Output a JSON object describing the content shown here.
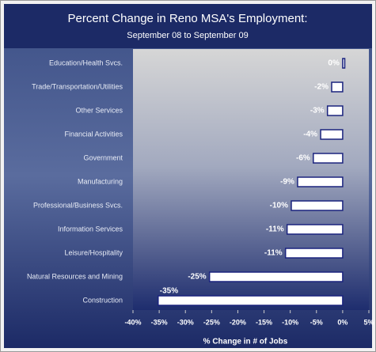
{
  "chart_data": {
    "type": "barh",
    "title": "Percent Change in  Reno MSA's Employment:",
    "subtitle": "September 08 to September 09",
    "x_label": "% Change in # of Jobs",
    "categories": [
      "Education/Health Svcs.",
      "Trade/Transportation/Utilities",
      "Other Services",
      "Financial Activities",
      "Government",
      "Manufacturing",
      "Professional/Business Svcs.",
      "Information Services",
      "Leisure/Hospitality",
      "Natural Resources and Mining",
      "Construction"
    ],
    "values": [
      0.4,
      -2.1,
      -2.9,
      -4.2,
      -5.6,
      -8.6,
      -9.8,
      -10.6,
      -10.9,
      -25.4,
      -35.2
    ],
    "value_labels": [
      "0%",
      "-2%",
      "-3%",
      "-4%",
      "-6%",
      "-9%",
      "-10%",
      "-11%",
      "-11%",
      "-25%",
      "-35%"
    ],
    "color": "#ffffff",
    "edge_color": "#1a237e",
    "xlim": [
      -40,
      5
    ],
    "xticks": [
      {
        "value": -40,
        "label": "-40%"
      },
      {
        "value": -35,
        "label": "-35%"
      },
      {
        "value": -30,
        "label": "-30%"
      },
      {
        "value": -25,
        "label": "-25%"
      },
      {
        "value": -20,
        "label": "-20%"
      },
      {
        "value": -15,
        "label": "-15%"
      },
      {
        "value": -10,
        "label": "-10%"
      },
      {
        "value": -5,
        "label": "-5%"
      },
      {
        "value": 0,
        "label": "0%"
      },
      {
        "value": 5,
        "label": "5%"
      }
    ],
    "grid": false
  }
}
